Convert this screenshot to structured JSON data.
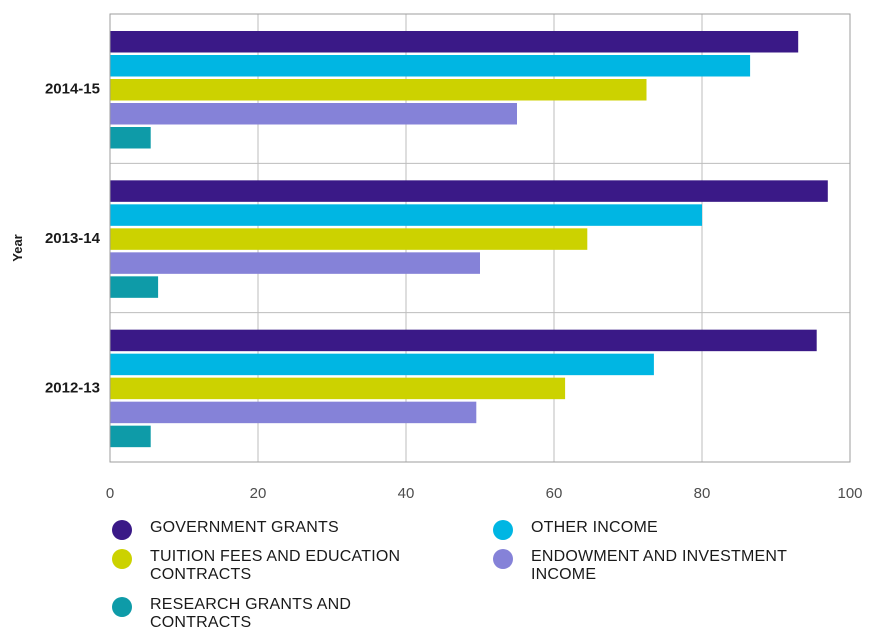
{
  "chart_data": {
    "type": "bar",
    "orientation": "horizontal",
    "title": "",
    "xlabel": "",
    "ylabel": "Year",
    "xlim": [
      0,
      100
    ],
    "xticks": [
      0,
      20,
      40,
      60,
      80,
      100
    ],
    "categories": [
      "2014-15",
      "2013-14",
      "2012-13"
    ],
    "grid": true,
    "legend_position": "bottom",
    "series": [
      {
        "name": "GOVERNMENT GRANTS",
        "color": "#3a1987",
        "values": [
          93,
          97,
          95.5
        ]
      },
      {
        "name": "OTHER INCOME",
        "color": "#00b6e3",
        "values": [
          86.5,
          80,
          73.5
        ]
      },
      {
        "name": "TUITION FEES AND EDUCATION CONTRACTS",
        "color": "#ccd200",
        "values": [
          72.5,
          64.5,
          61.5
        ]
      },
      {
        "name": "ENDOWMENT AND INVESTMENT INCOME",
        "color": "#8582d8",
        "values": [
          55,
          50,
          49.5
        ]
      },
      {
        "name": "RESEARCH GRANTS AND CONTRACTS",
        "color": "#0e9ba8",
        "values": [
          5.5,
          6.5,
          5.5
        ]
      }
    ]
  },
  "legend": [
    {
      "label": "GOVERNMENT GRANTS",
      "color": "#3a1987"
    },
    {
      "label": "OTHER INCOME",
      "color": "#00b6e3"
    },
    {
      "label": "TUITION FEES AND EDUCATION CONTRACTS",
      "color": "#ccd200"
    },
    {
      "label": "ENDOWMENT AND INVESTMENT INCOME",
      "color": "#8582d8"
    },
    {
      "label": "RESEARCH GRANTS AND CONTRACTS",
      "color": "#0e9ba8"
    }
  ]
}
